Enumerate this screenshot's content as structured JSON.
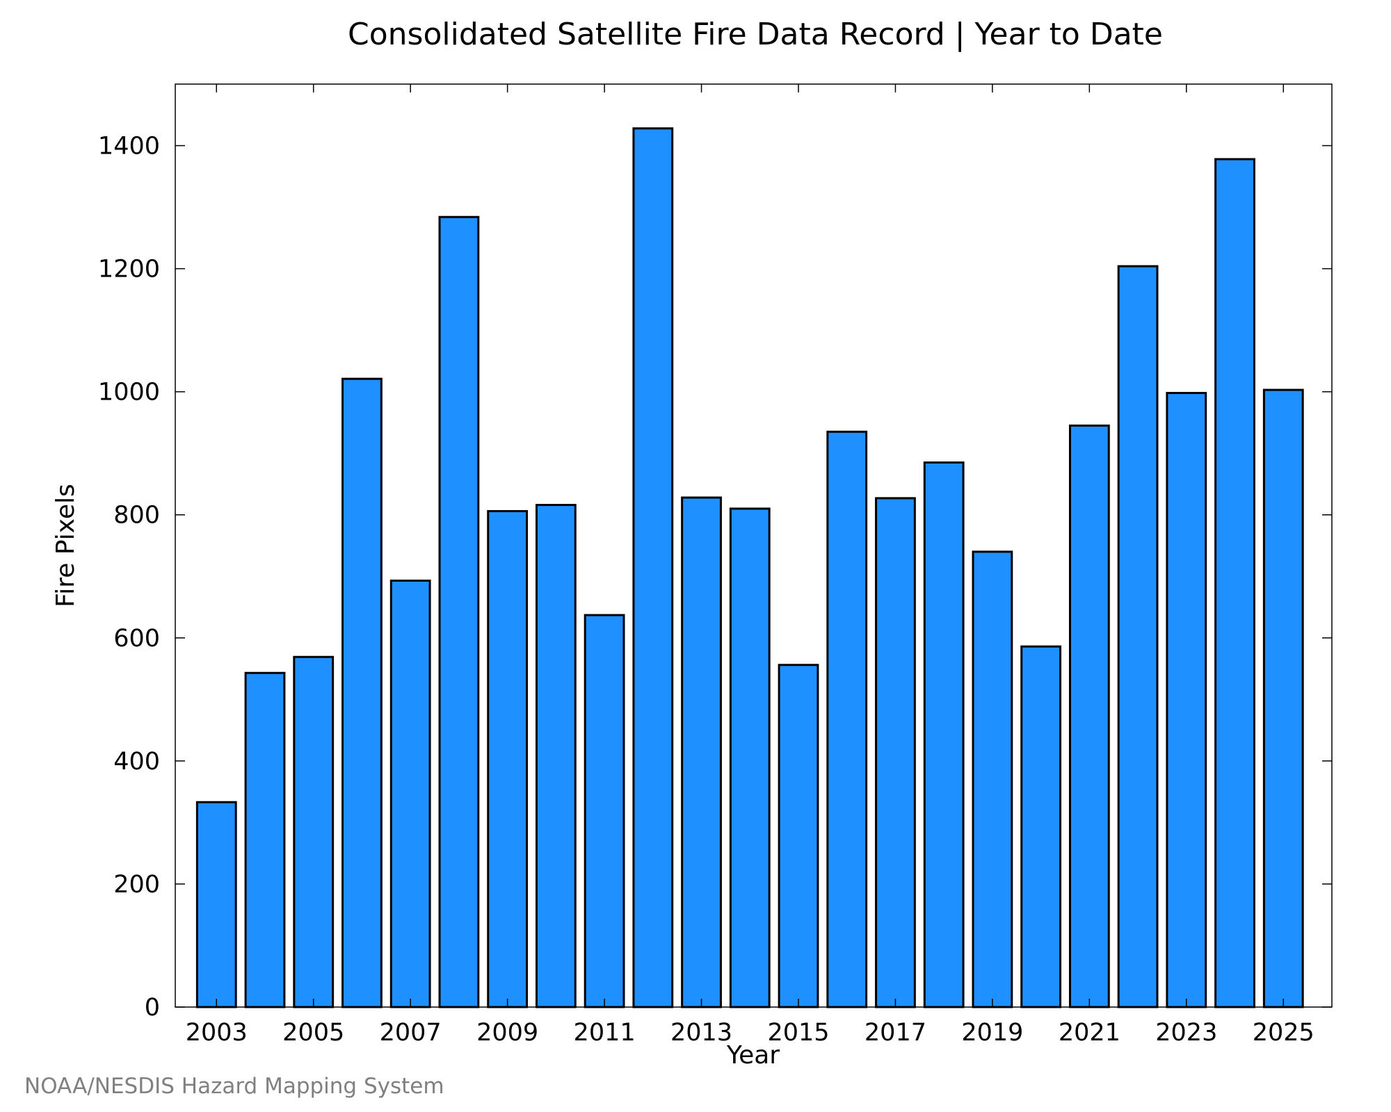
{
  "chart_data": {
    "type": "bar",
    "title": "Consolidated Satellite Fire Data Record | Year to Date",
    "xlabel": "Year",
    "ylabel": "Fire Pixels",
    "categories": [
      2003,
      2004,
      2005,
      2006,
      2007,
      2008,
      2009,
      2010,
      2011,
      2012,
      2013,
      2014,
      2015,
      2016,
      2017,
      2018,
      2019,
      2020,
      2021,
      2022,
      2023,
      2024,
      2025
    ],
    "values": [
      333,
      543,
      569,
      1021,
      693,
      1284,
      806,
      816,
      637,
      1428,
      828,
      810,
      556,
      935,
      827,
      885,
      740,
      586,
      945,
      1204,
      998,
      1378,
      1003
    ],
    "x_tick_labels": [
      "2003",
      "2005",
      "2007",
      "2009",
      "2011",
      "2013",
      "2015",
      "2017",
      "2019",
      "2021",
      "2023",
      "2025"
    ],
    "y_ticks": [
      0,
      200,
      400,
      600,
      800,
      1000,
      1200,
      1400
    ],
    "ylim": [
      0,
      1500
    ],
    "xlim": [
      2002.15,
      2026
    ],
    "grid": false,
    "bar_color": "#1E90FF",
    "edge_color": "#000000"
  },
  "credit": "NOAA/NESDIS Hazard Mapping System"
}
